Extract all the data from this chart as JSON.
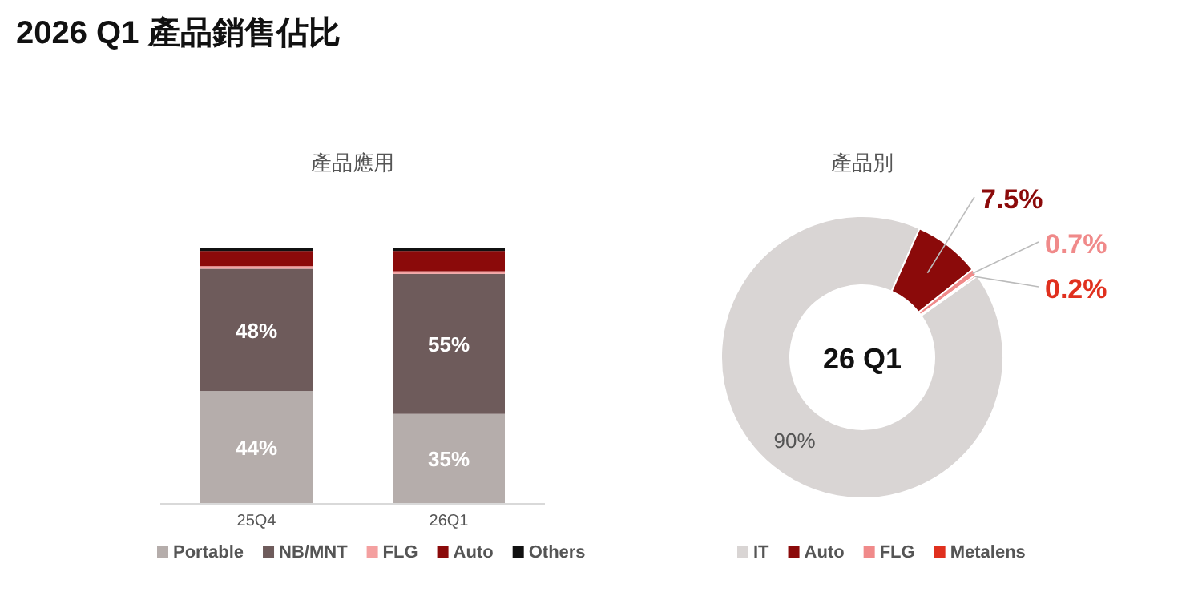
{
  "chart_data": [
    {
      "type": "bar",
      "stacked": true,
      "title": "2026 Q1 產品銷售佔比",
      "subtitle": "產品應用",
      "categories": [
        "25Q4",
        "26Q1"
      ],
      "legend": "bottom",
      "series": [
        {
          "name": "Portable",
          "color": "#b5adab",
          "values": [
            44,
            35
          ],
          "value_labels": [
            "44%",
            "35%"
          ]
        },
        {
          "name": "NB/MNT",
          "color": "#6e5b5b",
          "values": [
            48,
            55
          ],
          "value_labels": [
            "48%",
            "55%"
          ]
        },
        {
          "name": "FLG",
          "color": "#f4a0a0",
          "values": [
            1,
            1
          ],
          "value_labels": [
            null,
            null
          ]
        },
        {
          "name": "Auto",
          "color": "#8b0a0a",
          "values": [
            6,
            8
          ],
          "value_labels": [
            null,
            null
          ]
        },
        {
          "name": "Others",
          "color": "#111111",
          "values": [
            1,
            1
          ],
          "value_labels": [
            null,
            null
          ]
        }
      ]
    },
    {
      "type": "donut",
      "title": "產品別",
      "categories": [
        "IT",
        "Auto",
        "FLG",
        "Metalens"
      ],
      "values": [
        90,
        7.5,
        0.7,
        0.2
      ],
      "colors": [
        "#d9d5d4",
        "#8b0a0a",
        "#f08a8a",
        "#e0301e"
      ],
      "value_labels": [
        "90%",
        "7.5%",
        "0.7%",
        "0.2%"
      ],
      "annotations": [
        "26 Q1"
      ],
      "legend": "bottom"
    }
  ]
}
